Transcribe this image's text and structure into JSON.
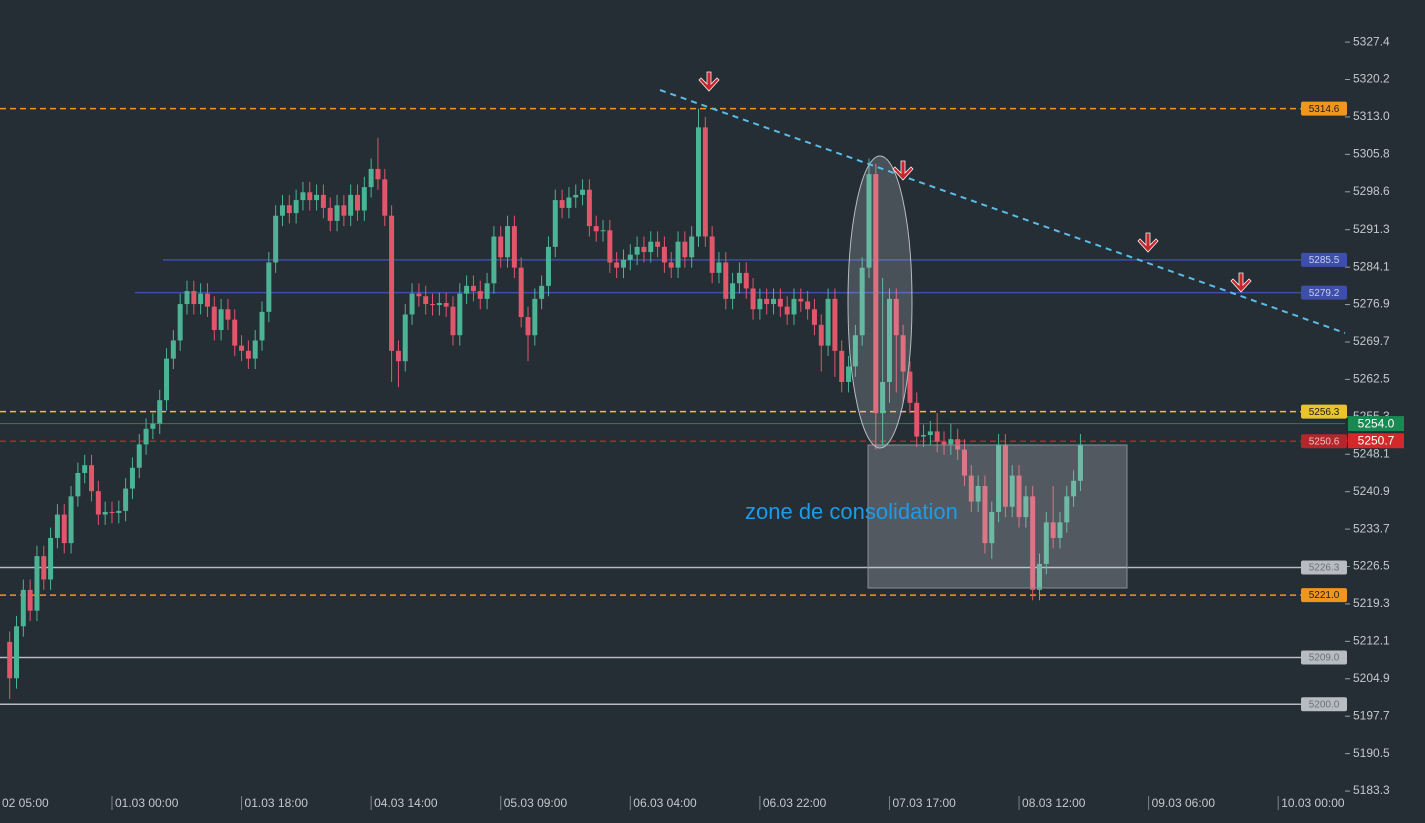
{
  "chart_data": {
    "type": "candlestick",
    "annotation": "zone de consolidation",
    "up_color": "#4cb394",
    "down_color": "#e0566a",
    "ylim": [
      5181.0,
      5335.5
    ],
    "yticks": [
      5327.4,
      5320.2,
      {
        "value": 5313,
        "label": "5313.0"
      },
      5305.8,
      5298.6,
      5291.3,
      5284.1,
      5276.9,
      5269.7,
      5262.5,
      5255.3,
      5248.1,
      5240.9,
      5233.7,
      5226.5,
      5219.3,
      5212.1,
      5204.9,
      5197.7,
      5190.5,
      5183.3
    ],
    "categories": [
      "02 05:00",
      null,
      null,
      null,
      null,
      null,
      null,
      null,
      null,
      null,
      null,
      null,
      null,
      null,
      null,
      null,
      null,
      null,
      null,
      "01.03 00:00",
      null,
      null,
      null,
      null,
      null,
      null,
      null,
      null,
      null,
      null,
      null,
      null,
      null,
      null,
      null,
      null,
      null,
      null,
      "01.03 18:00",
      null,
      null,
      null,
      null,
      null,
      null,
      null,
      null,
      null,
      null,
      null,
      null,
      null,
      null,
      null,
      null,
      null,
      null,
      "04.03 14:00",
      null,
      null,
      null,
      null,
      null,
      null,
      null,
      null,
      null,
      null,
      null,
      null,
      null,
      null,
      null,
      null,
      null,
      null,
      "05.03 09:00",
      null,
      null,
      null,
      null,
      null,
      null,
      null,
      null,
      null,
      null,
      null,
      null,
      null,
      null,
      null,
      null,
      null,
      null,
      "06.03 04:00",
      null,
      null,
      null,
      null,
      null,
      null,
      null,
      null,
      null,
      null,
      null,
      null,
      null,
      null,
      null,
      null,
      null,
      null,
      "06.03 22:00",
      null,
      null,
      null,
      null,
      null,
      null,
      null,
      null,
      null,
      null,
      null,
      null,
      null,
      null,
      null,
      null,
      null,
      null,
      "07.03 17:00",
      null,
      null,
      null,
      null,
      null,
      null,
      null,
      null,
      null,
      null,
      null,
      null,
      null,
      null,
      null,
      null,
      null,
      null,
      "08.03 12:00",
      null,
      null,
      null,
      null,
      null,
      null,
      null,
      null,
      null,
      null,
      null,
      null,
      null,
      null,
      null,
      null,
      null,
      null,
      "09.03 06:00",
      null,
      null,
      null,
      null,
      null,
      null,
      null,
      null,
      null,
      null,
      null,
      null,
      null,
      null,
      null,
      null,
      null,
      null,
      "10.03 00:00"
    ],
    "open": [
      null,
      null,
      null,
      null,
      5212,
      5205,
      5215,
      5222,
      5218,
      5228.5,
      5224,
      5232,
      5236.5,
      5231,
      5240,
      5244.5,
      5246,
      5241,
      5236.5,
      5237,
      5236.8,
      5237.2,
      5241.5,
      5245.5,
      5250,
      5253,
      5254,
      5258.5,
      5266.5,
      5270,
      5277,
      5279.5,
      5277,
      5279,
      5276.5,
      5272,
      5276,
      5274,
      5269,
      5268,
      5266.5,
      5270,
      5275.5,
      5285,
      5294,
      5296,
      5294.5,
      5297,
      5298.5,
      5297,
      5298,
      5295.5,
      5293,
      5296,
      5294,
      5298,
      5295,
      5299.5,
      5303,
      5301,
      5294,
      5268,
      5266,
      5275,
      5279,
      5278.5,
      5277,
      5276.8,
      5277.2,
      5276.5,
      5271,
      5279,
      5280.5,
      5279.5,
      5278,
      5281,
      5290,
      5286,
      5292,
      5284,
      5274.5,
      5271,
      5278,
      5280.5,
      5288,
      5297,
      5295.5,
      5297.5,
      5298,
      5299,
      5292,
      5291,
      5291.2,
      5285,
      5284,
      5285.5,
      5286.5,
      5288,
      5287,
      5289,
      5288,
      5285,
      5284,
      5289,
      5286,
      5290,
      5311,
      5290,
      5283,
      5285,
      5278,
      5281,
      5283,
      5280,
      5276,
      5278,
      5277,
      5278,
      5276.5,
      5275,
      5278,
      5277.5,
      5276,
      5273,
      5269,
      5278,
      5268,
      5262,
      5265,
      5271,
      5284,
      5302,
      5256,
      5262,
      5278,
      5271,
      5264,
      5258,
      5251.5,
      5251.8,
      5252.5,
      5250.5,
      5250,
      5251,
      5249,
      5244,
      5239,
      5242,
      5231,
      5237,
      5250,
      5238,
      5244,
      5236,
      5240,
      5222,
      5227,
      5235,
      5232,
      5235,
      5240,
      5243,
      null,
      null,
      null,
      null,
      null,
      null,
      null,
      null,
      null,
      null,
      null,
      null,
      null,
      null,
      null,
      null,
      null,
      null,
      null,
      null,
      null,
      null,
      null,
      null,
      null,
      null,
      null,
      null,
      null
    ],
    "high": [
      null,
      null,
      null,
      null,
      5214,
      5217,
      5224,
      5224,
      5230.5,
      5230.5,
      5234,
      5238.5,
      5238.5,
      5242,
      5246.5,
      5248,
      5248,
      5243,
      5239,
      5239,
      5239.2,
      5243.5,
      5247.5,
      5252,
      5255,
      5256,
      5260.5,
      5268.5,
      5272,
      5279,
      5281.5,
      5281.5,
      5281,
      5281,
      5278.5,
      5278,
      5278,
      5276,
      5271,
      5270,
      5272,
      5277.5,
      5287,
      5296,
      5298,
      5298,
      5299,
      5300.5,
      5300.5,
      5300,
      5300,
      5297.5,
      5298,
      5298,
      5300,
      5300,
      5301.5,
      5305,
      5309,
      5303,
      5296,
      5270,
      5277,
      5281,
      5281,
      5280.5,
      5279,
      5279.2,
      5279.2,
      5278.5,
      5281,
      5282.5,
      5282.5,
      5281.5,
      5283,
      5292,
      5292,
      5294,
      5294,
      5286,
      5276.5,
      5280,
      5282.5,
      5290,
      5299,
      5299,
      5299.5,
      5300,
      5301,
      5301,
      5294,
      5293.2,
      5293.2,
      5287,
      5287.5,
      5288.5,
      5290,
      5290,
      5291,
      5291,
      5290,
      5287,
      5291,
      5291,
      5292,
      5314.6,
      5313,
      5292,
      5287,
      5287,
      5283,
      5285,
      5285,
      5282,
      5280,
      5280,
      5280,
      5280,
      5278.5,
      5280,
      5280,
      5279.5,
      5278,
      5275,
      5280,
      5280,
      5270,
      5267,
      5273,
      5286,
      5305,
      5304,
      5282,
      5280,
      5280,
      5273,
      5266,
      5260,
      5253.8,
      5254.5,
      5256,
      5252.5,
      5254,
      5253,
      5251,
      5246,
      5244,
      5244,
      5239,
      5252,
      5252,
      5246,
      5246,
      5242,
      5242,
      5229,
      5237,
      5242,
      5237,
      5242,
      5245,
      5252,
      null,
      null,
      null,
      null,
      null,
      null,
      null,
      null,
      null,
      null,
      null,
      null,
      null,
      null,
      null,
      null,
      null,
      null,
      null,
      null,
      null,
      null,
      null,
      null,
      null,
      null,
      null,
      null,
      null
    ],
    "low": [
      null,
      null,
      null,
      null,
      5201,
      5203,
      5213,
      5216,
      5216,
      5222,
      5222,
      5230,
      5229,
      5229,
      5238,
      5242.5,
      5239,
      5234.5,
      5234.5,
      5234.8,
      5234.8,
      5235.2,
      5239.5,
      5243.5,
      5248,
      5251,
      5252,
      5256.5,
      5264.5,
      5268,
      5275,
      5275,
      5275,
      5274.5,
      5270,
      5270,
      5272,
      5267,
      5266,
      5264.5,
      5264.5,
      5268,
      5273.5,
      5283,
      5292,
      5292.5,
      5292.5,
      5295,
      5295,
      5295,
      5293.5,
      5291,
      5291,
      5292,
      5292,
      5293,
      5293,
      5297.5,
      5299,
      5292,
      5262,
      5261,
      5264,
      5273,
      5276.5,
      5275,
      5274.8,
      5274.8,
      5274.5,
      5269,
      5269,
      5277,
      5277.5,
      5276,
      5276,
      5279,
      5284,
      5284,
      5282,
      5272.5,
      5266,
      5269,
      5276,
      5278.5,
      5286,
      5293.5,
      5293.5,
      5295.5,
      5296,
      5290,
      5289,
      5289,
      5283,
      5282,
      5282,
      5283.5,
      5284.5,
      5285,
      5285,
      5286,
      5283,
      5282,
      5282,
      5284,
      5284,
      5288,
      5288,
      5281,
      5281,
      5276,
      5276,
      5279,
      5278,
      5274,
      5274,
      5275,
      5275,
      5274.5,
      5273,
      5273,
      5275.5,
      5274,
      5271,
      5264,
      5267,
      5263,
      5260,
      5260,
      5263,
      5269,
      5282,
      5249,
      5250,
      5258,
      5260,
      5258,
      5256,
      5249.5,
      5249.5,
      5249.8,
      5248.5,
      5248,
      5248,
      5247,
      5242,
      5237,
      5237,
      5229,
      5228,
      5235,
      5236,
      5236,
      5234,
      5234,
      5220,
      5220,
      5225,
      5230,
      5230,
      5233,
      5238,
      5241,
      null,
      null,
      null,
      null,
      null,
      null,
      null,
      null,
      null,
      null,
      null,
      null,
      null,
      null,
      null,
      null,
      null,
      null,
      null,
      null,
      null,
      null,
      null,
      null,
      null,
      null,
      null,
      null,
      null
    ],
    "close": [
      null,
      null,
      null,
      null,
      5205,
      5215,
      5222,
      5218,
      5228.5,
      5224,
      5232,
      5236.5,
      5231,
      5240,
      5244.5,
      5246,
      5241,
      5236.5,
      5237,
      5236.8,
      5237.2,
      5241.5,
      5245.5,
      5250,
      5253,
      5254,
      5258.5,
      5266.5,
      5270,
      5277,
      5279.5,
      5277,
      5279,
      5276.5,
      5272,
      5276,
      5274,
      5269,
      5268,
      5266.5,
      5270,
      5275.5,
      5285,
      5294,
      5296,
      5294.5,
      5297,
      5298.5,
      5297,
      5298,
      5295.5,
      5293,
      5296,
      5294,
      5298,
      5295,
      5299.5,
      5303,
      5301,
      5294,
      5268,
      5266,
      5275,
      5279,
      5278.5,
      5277,
      5276.8,
      5277.2,
      5276.5,
      5271,
      5279,
      5280.5,
      5279.5,
      5278,
      5281,
      5290,
      5286,
      5292,
      5284,
      5274.5,
      5271,
      5278,
      5280.5,
      5288,
      5297,
      5295.5,
      5297.5,
      5298,
      5299,
      5292,
      5291,
      5291.2,
      5285,
      5284,
      5285.5,
      5286.5,
      5288,
      5287,
      5289,
      5288,
      5285,
      5284,
      5289,
      5286,
      5290,
      5311,
      5290,
      5283,
      5285,
      5278,
      5281,
      5283,
      5280,
      5276,
      5278,
      5277,
      5278,
      5276.5,
      5275,
      5278,
      5277.5,
      5276,
      5273,
      5269,
      5278,
      5268,
      5262,
      5265,
      5271,
      5284,
      5302,
      5256,
      5262,
      5278,
      5271,
      5264,
      5258,
      5251.5,
      5251.8,
      5252.5,
      5250.5,
      5250,
      5251,
      5249,
      5244,
      5239,
      5242,
      5231,
      5237,
      5250,
      5238,
      5244,
      5236,
      5240,
      5222,
      5227,
      5235,
      5232,
      5235,
      5240,
      5243,
      5250,
      null,
      null,
      null,
      null,
      null,
      null,
      null,
      null,
      null,
      null,
      null,
      null,
      null,
      null,
      null,
      null,
      null,
      null,
      null,
      null,
      null,
      null,
      null,
      null,
      null,
      null,
      null,
      null,
      null
    ],
    "levels": [
      {
        "value": 5314.6,
        "color": "#f0961e",
        "text_color": "#1e1e1e",
        "style": "dashed"
      },
      {
        "value": 5285.5,
        "color": "#3d4fa8",
        "text_color": "#c8cdf0",
        "style": "solid"
      },
      {
        "value": 5279.2,
        "color": "#3d4fa8",
        "text_color": "#c8cdf0",
        "style": "solid"
      },
      {
        "value": 5256.3,
        "color": "#e8c52a",
        "text_color": "#1e1e1e",
        "style": "dashed"
      },
      {
        "value": 5250.6,
        "color": "#b3262b",
        "text_color": "#f0c0c0",
        "style": "dashed"
      },
      {
        "value": 5226.3,
        "color": "#b8bcc2",
        "text_color": "#6a7078",
        "style": "solid"
      },
      {
        "value": 5221,
        "label": "5221.0",
        "color": "#f0961e",
        "text_color": "#1e1e1e",
        "style": "dashed"
      },
      {
        "value": 5209,
        "label": "5209.0",
        "color": "#b8bcc2",
        "text_color": "#6a7078",
        "style": "solid"
      },
      {
        "value": 5200,
        "label": "5200.0",
        "color": "#b8bcc2",
        "text_color": "#6a7078",
        "style": "solid"
      }
    ],
    "price_lines": [
      {
        "value": 5254,
        "label": "5254.0",
        "color": "#178a52",
        "line": true
      },
      {
        "value": 5250.7,
        "color": "#d3282c",
        "line": false
      }
    ]
  }
}
